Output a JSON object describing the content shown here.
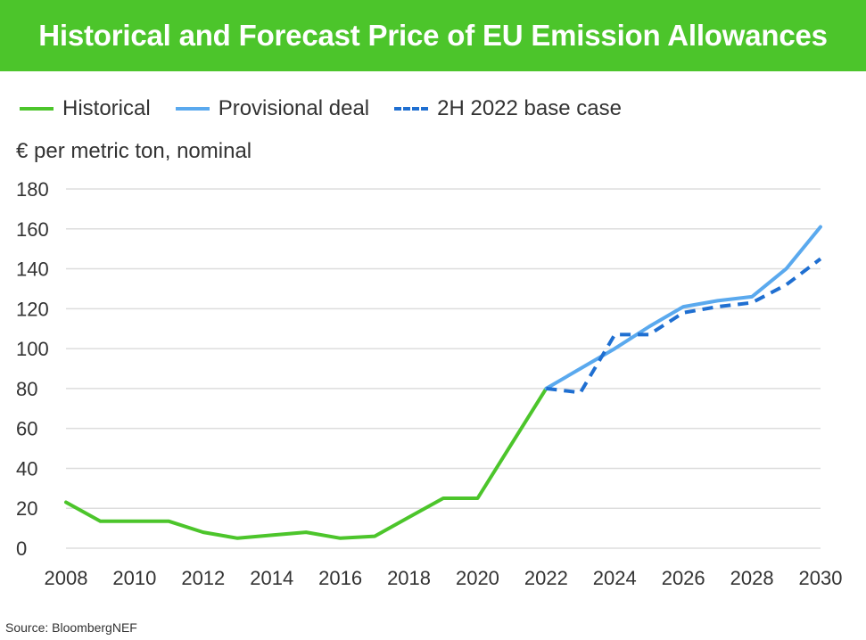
{
  "title": "Historical and Forecast Price of EU Emission Allowances",
  "source": "Source: BloombergNEF",
  "colors": {
    "header_bg": "#4cc52b",
    "historical": "#4cc52b",
    "provisional": "#5aa9ee",
    "base_case": "#1f6fd1",
    "grid": "#dddddd"
  },
  "chart_data": {
    "type": "line",
    "ylabel": "€ per metric ton, nominal",
    "xlabel": "",
    "xlim": [
      2008,
      2030
    ],
    "ylim": [
      0,
      180
    ],
    "x_ticks": [
      "2008",
      "2010",
      "2012",
      "2014",
      "2016",
      "2018",
      "2020",
      "2022",
      "2024",
      "2026",
      "2028",
      "2030"
    ],
    "y_ticks": [
      "0",
      "20",
      "40",
      "60",
      "80",
      "100",
      "120",
      "140",
      "160",
      "180"
    ],
    "grid": true,
    "legend_position": "top-left",
    "series": [
      {
        "name": "Historical",
        "style": "solid",
        "color": "#4cc52b",
        "x": [
          2008,
          2009,
          2010,
          2011,
          2012,
          2013,
          2014,
          2015,
          2016,
          2017,
          2018,
          2019,
          2020,
          2022
        ],
        "y": [
          23,
          13.5,
          13.5,
          13.5,
          8,
          5,
          6.5,
          8,
          5,
          6,
          15.5,
          25,
          25,
          80
        ]
      },
      {
        "name": "Provisional deal",
        "style": "solid",
        "color": "#5aa9ee",
        "x": [
          2022,
          2023,
          2024,
          2025,
          2026,
          2027,
          2028,
          2029,
          2030
        ],
        "y": [
          80,
          90,
          100,
          111,
          121,
          124,
          126,
          140,
          161
        ]
      },
      {
        "name": "2H 2022 base case",
        "style": "dashed",
        "color": "#1f6fd1",
        "x": [
          2022,
          2023,
          2024,
          2025,
          2026,
          2027,
          2028,
          2029,
          2030
        ],
        "y": [
          80,
          78,
          107,
          107,
          118,
          121,
          123,
          132,
          145
        ]
      }
    ]
  }
}
